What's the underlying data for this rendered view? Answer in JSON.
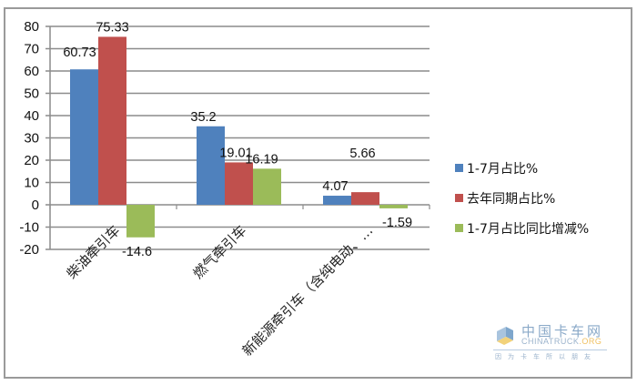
{
  "chart_data": {
    "type": "bar",
    "title": "",
    "xlabel": "",
    "ylabel": "",
    "ylim": [
      -20,
      80
    ],
    "yticks": [
      80,
      70,
      60,
      50,
      40,
      30,
      20,
      10,
      0,
      -10,
      -20
    ],
    "grid": true,
    "legend_position": "right",
    "categories": [
      "柴油牵引车",
      "燃气牵引车",
      "新能源牵引车（含纯电动、…"
    ],
    "series": [
      {
        "name": "1-7月占比%",
        "color": "#4f81bd",
        "values": [
          60.73,
          35.2,
          4.07
        ]
      },
      {
        "name": "去年同期占比%",
        "color": "#c0504d",
        "values": [
          75.33,
          19.01,
          5.66
        ]
      },
      {
        "name": "1-7月占比同比增减%",
        "color": "#9bbb59",
        "values": [
          -14.6,
          16.19,
          -1.59
        ]
      }
    ],
    "data_labels": [
      [
        "60.73",
        "35.2",
        "4.07"
      ],
      [
        "75.33",
        "19.01",
        "5.66"
      ],
      [
        "-14.6",
        "16.19",
        "-1.59"
      ]
    ]
  },
  "legend": {
    "items": [
      {
        "label": "1-7月占比%",
        "color": "#4f81bd"
      },
      {
        "label": "去年同期占比%",
        "color": "#c0504d"
      },
      {
        "label": "1-7月占比同比增减%",
        "color": "#9bbb59"
      }
    ]
  },
  "watermark": {
    "cn": "中国卡车网",
    "en_main": "CHINATRUCK",
    "en_suffix": ".ORG",
    "slogan": "因为卡车所以朋友"
  }
}
